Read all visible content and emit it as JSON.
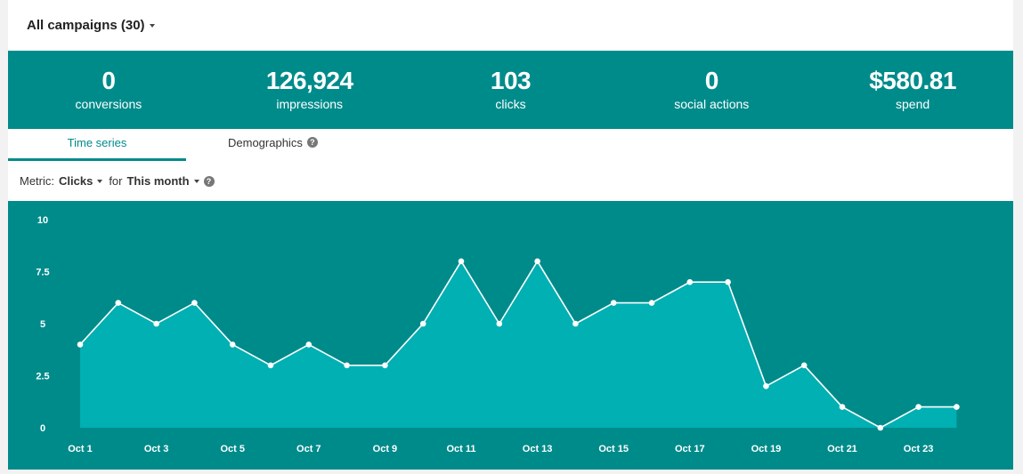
{
  "header": {
    "campaign_selector": "All campaigns (30)"
  },
  "stats": [
    {
      "value": "0",
      "label": "conversions"
    },
    {
      "value": "126,924",
      "label": "impressions"
    },
    {
      "value": "103",
      "label": "clicks"
    },
    {
      "value": "0",
      "label": "social actions"
    },
    {
      "value": "$580.81",
      "label": "spend"
    }
  ],
  "tabs": {
    "time_series": "Time series",
    "demographics": "Demographics"
  },
  "metric_bar": {
    "metric_label": "Metric:",
    "metric_value": "Clicks",
    "for_label": "for",
    "period_value": "This month"
  },
  "icons": {
    "help": "?"
  },
  "colors": {
    "teal": "#008b8b",
    "fill": "#00b0b3",
    "line": "#ffffff"
  },
  "chart_data": {
    "type": "area",
    "x": [
      "Oct 1",
      "Oct 2",
      "Oct 3",
      "Oct 4",
      "Oct 5",
      "Oct 6",
      "Oct 7",
      "Oct 8",
      "Oct 9",
      "Oct 10",
      "Oct 11",
      "Oct 12",
      "Oct 13",
      "Oct 14",
      "Oct 15",
      "Oct 16",
      "Oct 17",
      "Oct 18",
      "Oct 19",
      "Oct 20",
      "Oct 21",
      "Oct 22",
      "Oct 23",
      "Oct 24"
    ],
    "values": [
      4,
      6,
      5,
      6,
      4,
      3,
      4,
      3,
      3,
      5,
      8,
      5,
      8,
      5,
      6,
      6,
      7,
      7,
      2,
      3,
      1,
      0,
      1,
      1
    ],
    "x_tick_labels": [
      "Oct 1",
      "Oct 3",
      "Oct 5",
      "Oct 7",
      "Oct 9",
      "Oct 11",
      "Oct 13",
      "Oct 15",
      "Oct 17",
      "Oct 19",
      "Oct 21",
      "Oct 23"
    ],
    "y_ticks": [
      "0",
      "2.5",
      "5",
      "7.5",
      "10"
    ],
    "ylim": [
      0,
      10
    ],
    "grid": false,
    "title": "",
    "xlabel": "",
    "ylabel": ""
  }
}
